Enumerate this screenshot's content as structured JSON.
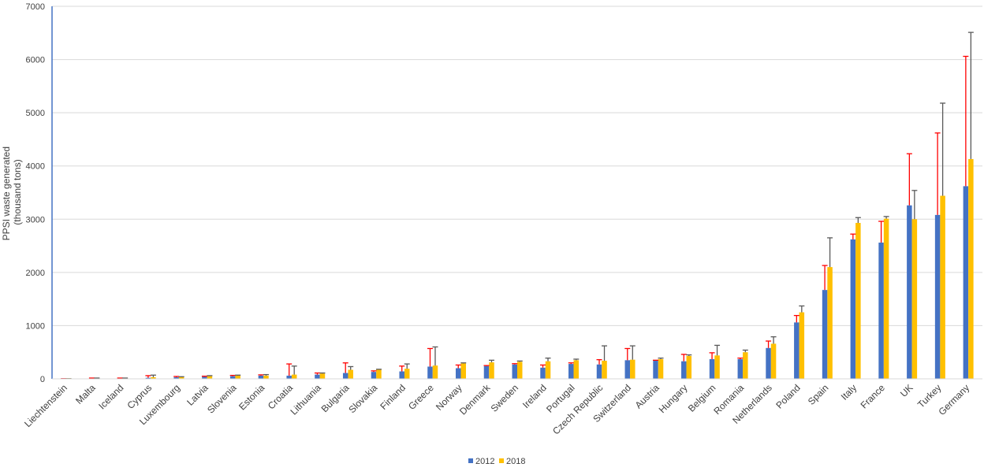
{
  "chart_data": {
    "type": "bar",
    "title": "",
    "xlabel": "",
    "ylabel": "PPSI waste generated (thousand tons)",
    "ylabel_lines": [
      "PPSI waste generated",
      "(thousand tons)"
    ],
    "ylim": [
      0,
      7000
    ],
    "yticks": [
      "0",
      "1000",
      "2000",
      "3000",
      "4000",
      "5000",
      "6000",
      "7000"
    ],
    "grid": true,
    "legend_position": "bottom-center",
    "categories": [
      "Liechtenstein",
      "Malta",
      "Iceland",
      "Cyprus",
      "Luxembourg",
      "Latvia",
      "Slovenia",
      "Estonia",
      "Croatia",
      "Lithuania",
      "Bulgaria",
      "Slovakia",
      "Finland",
      "Greece",
      "Norway",
      "Denmark",
      "Sweden",
      "Ireland",
      "Portugal",
      "Czech Republic",
      "Switzerland",
      "Austria",
      "Hungary",
      "Belgium",
      "Romania",
      "Netherlands",
      "Poland",
      "Spain",
      "Italy",
      "France",
      "UK",
      "Turkey",
      "Germany"
    ],
    "series": [
      {
        "name": "2012",
        "color": "#4472c4",
        "error_color": "#ff0000",
        "values": [
          2,
          8,
          10,
          20,
          30,
          40,
          50,
          60,
          60,
          80,
          110,
          130,
          140,
          230,
          200,
          240,
          270,
          210,
          280,
          270,
          350,
          340,
          330,
          370,
          370,
          580,
          1060,
          1670,
          2620,
          2560,
          3260,
          3080,
          3620
        ],
        "error_upper": [
          3,
          15,
          15,
          60,
          45,
          50,
          65,
          75,
          280,
          110,
          300,
          150,
          240,
          570,
          260,
          250,
          285,
          260,
          300,
          360,
          570,
          350,
          460,
          490,
          390,
          710,
          1190,
          2130,
          2720,
          2960,
          4230,
          4620,
          6060
        ]
      },
      {
        "name": "2018",
        "color": "#ffc000",
        "error_color": "#595959",
        "values": [
          2,
          10,
          10,
          30,
          30,
          50,
          60,
          60,
          80,
          100,
          170,
          170,
          190,
          250,
          290,
          310,
          320,
          330,
          350,
          340,
          360,
          370,
          430,
          440,
          500,
          660,
          1250,
          2100,
          2930,
          3010,
          3000,
          3440,
          4130
        ],
        "error_upper": [
          3,
          15,
          15,
          70,
          40,
          60,
          70,
          80,
          240,
          110,
          230,
          180,
          280,
          600,
          300,
          350,
          335,
          390,
          370,
          620,
          620,
          390,
          450,
          630,
          540,
          790,
          1370,
          2650,
          3030,
          3050,
          3540,
          5180,
          6510
        ]
      }
    ]
  }
}
